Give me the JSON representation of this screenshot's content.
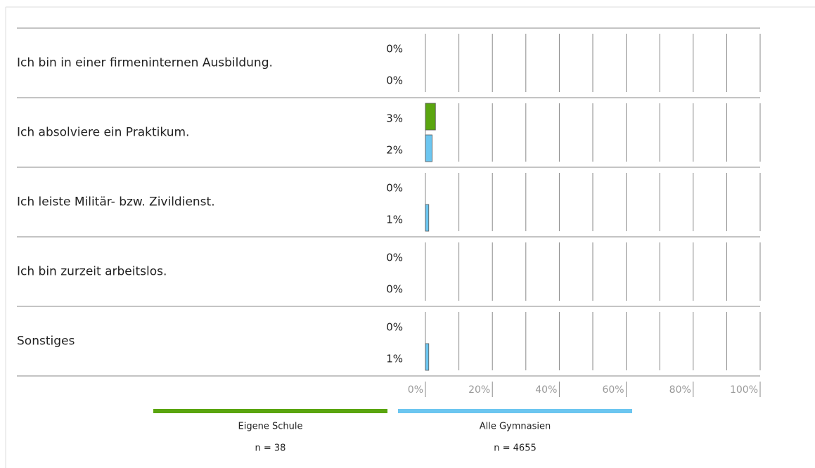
{
  "chart_data": {
    "type": "bar",
    "orientation": "horizontal",
    "categories": [
      "Ich bin in einer firmeninternen Ausbildung.",
      "Ich absolviere ein Praktikum.",
      "Ich leiste Militär- bzw.  Zivildienst.",
      "Ich bin zurzeit arbeitslos.",
      "Sonstiges"
    ],
    "series": [
      {
        "name": "Eigene Schule",
        "note": "n = 38",
        "color": "#5aa50f",
        "values": [
          0,
          3,
          0,
          0,
          0
        ],
        "value_labels": [
          "0%",
          "3%",
          "0%",
          "0%",
          "0%"
        ]
      },
      {
        "name": "Alle Gymnasien",
        "note": "n = 4655",
        "color": "#6cc6f0",
        "values": [
          0,
          2,
          1,
          0,
          1
        ],
        "value_labels": [
          "0%",
          "2%",
          "1%",
          "0%",
          "1%"
        ]
      }
    ],
    "xlim": [
      0,
      100
    ],
    "xticks": [
      {
        "value": 0,
        "label": "0%"
      },
      {
        "value": 20,
        "label": "20%"
      },
      {
        "value": 40,
        "label": "40%"
      },
      {
        "value": 60,
        "label": "60%"
      },
      {
        "value": 80,
        "label": "80%"
      },
      {
        "value": 100,
        "label": "100%"
      }
    ],
    "xminor": [
      10,
      30,
      50,
      70,
      90
    ],
    "grid": true
  }
}
